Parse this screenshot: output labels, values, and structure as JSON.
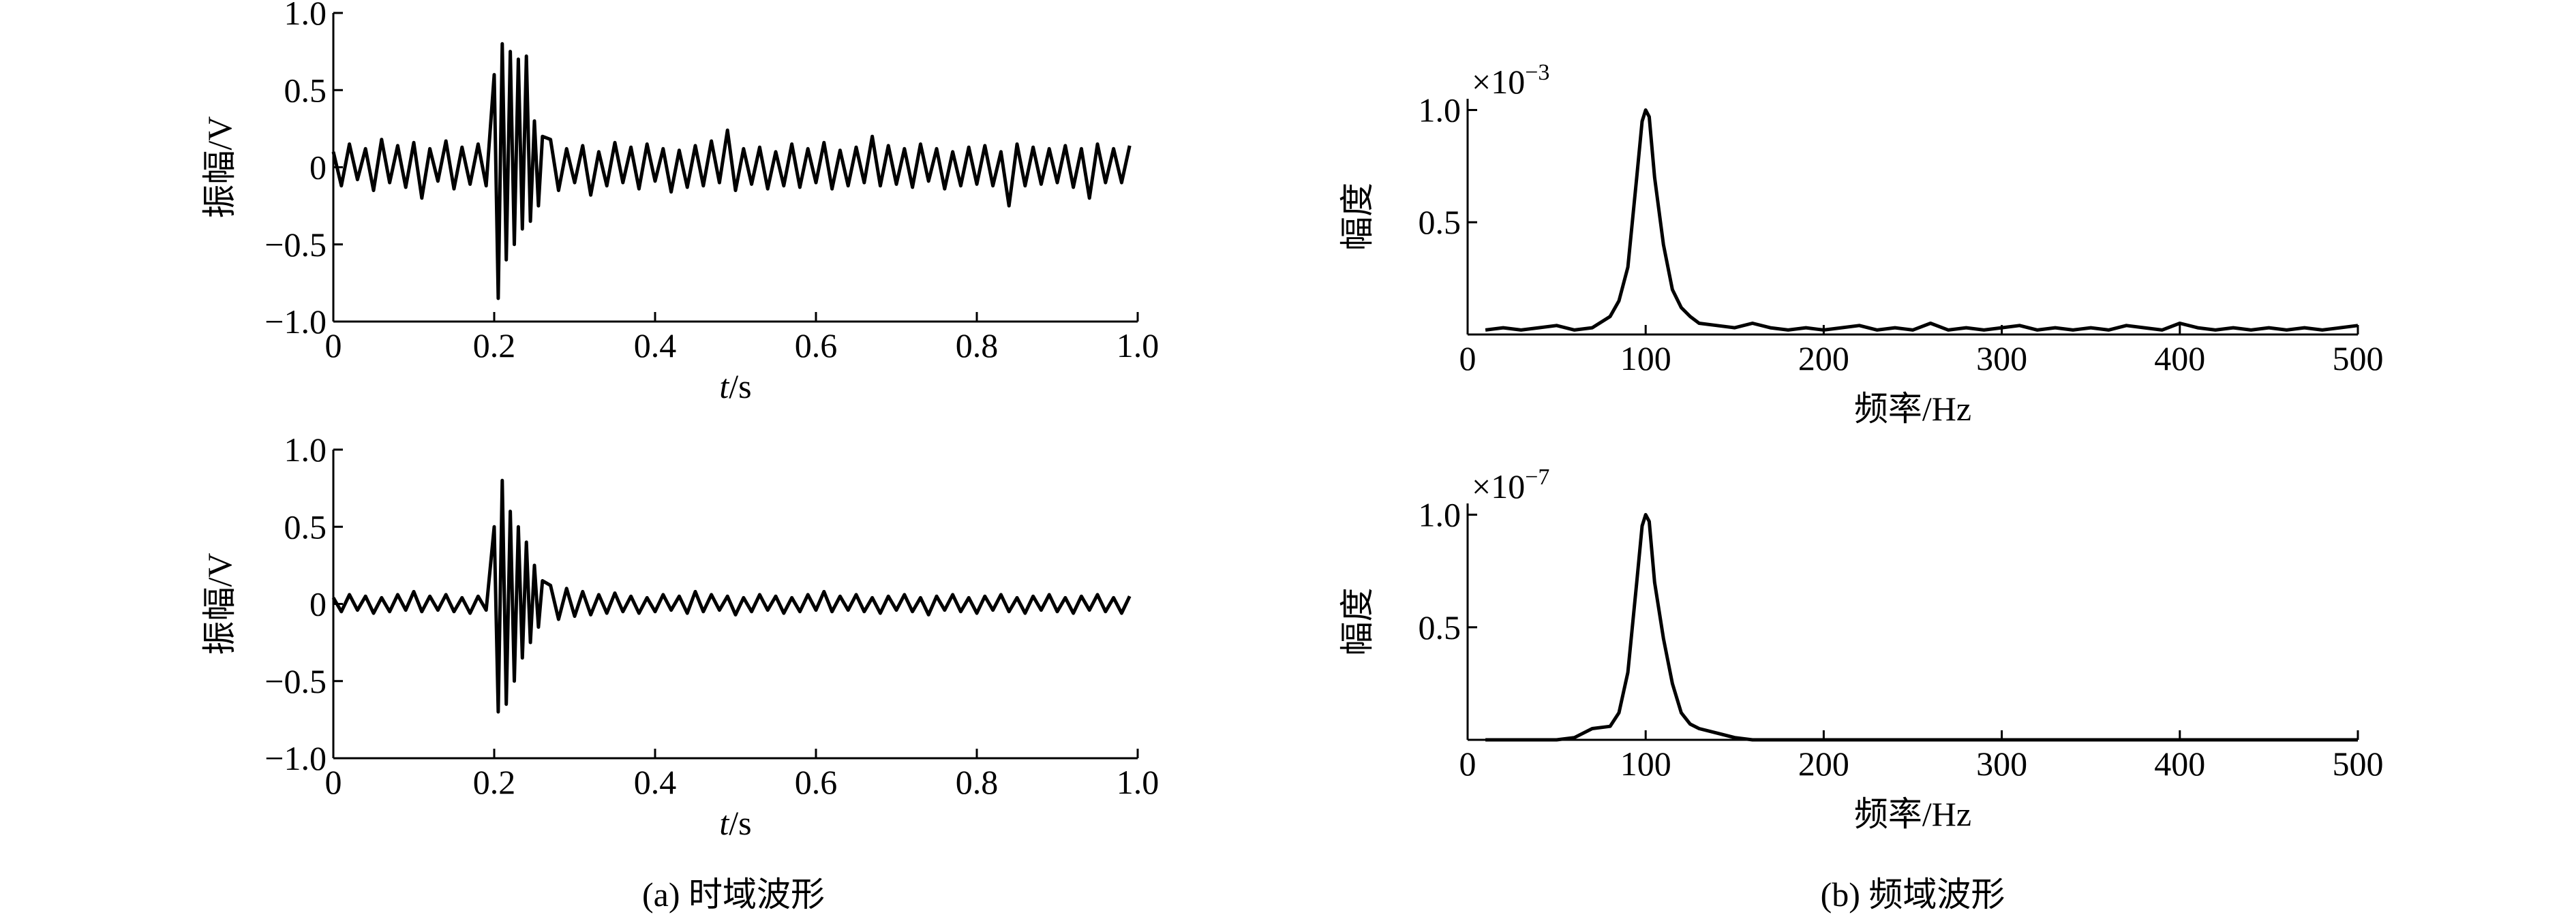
{
  "chart_data": [
    {
      "type": "line",
      "ylabel": "振幅/V",
      "xlabel": {
        "symbol": "t",
        "unit": "/s"
      },
      "xlim": [
        0,
        1
      ],
      "xticks": [
        0,
        0.2,
        0.4,
        0.6,
        0.8,
        {
          "value": 1,
          "label": "1.0"
        }
      ],
      "ylim": [
        -1,
        1
      ],
      "yticks": [
        {
          "value": -1,
          "label": "−1.0"
        },
        {
          "value": -0.5,
          "label": "−0.5"
        },
        0,
        0.5,
        {
          "value": 1,
          "label": "1.0"
        }
      ],
      "color": "#000000",
      "x": [
        0,
        0.01,
        0.02,
        0.03,
        0.04,
        0.05,
        0.06,
        0.07,
        0.08,
        0.09,
        0.1,
        0.11,
        0.12,
        0.13,
        0.14,
        0.15,
        0.16,
        0.17,
        0.18,
        0.19,
        0.2,
        0.205,
        0.21,
        0.215,
        0.22,
        0.225,
        0.23,
        0.235,
        0.24,
        0.245,
        0.25,
        0.255,
        0.26,
        0.27,
        0.28,
        0.29,
        0.3,
        0.31,
        0.32,
        0.33,
        0.34,
        0.35,
        0.36,
        0.37,
        0.38,
        0.39,
        0.4,
        0.41,
        0.42,
        0.43,
        0.44,
        0.45,
        0.46,
        0.47,
        0.48,
        0.49,
        0.5,
        0.51,
        0.52,
        0.53,
        0.54,
        0.55,
        0.56,
        0.57,
        0.58,
        0.59,
        0.6,
        0.61,
        0.62,
        0.63,
        0.64,
        0.65,
        0.66,
        0.67,
        0.68,
        0.69,
        0.7,
        0.71,
        0.72,
        0.73,
        0.74,
        0.75,
        0.76,
        0.77,
        0.78,
        0.79,
        0.8,
        0.81,
        0.82,
        0.83,
        0.84,
        0.85,
        0.86,
        0.87,
        0.88,
        0.89,
        0.9,
        0.91,
        0.92,
        0.93,
        0.94,
        0.95,
        0.96,
        0.97,
        0.98,
        0.99
      ],
      "values": [
        0.1,
        -0.12,
        0.15,
        -0.08,
        0.12,
        -0.15,
        0.18,
        -0.1,
        0.14,
        -0.13,
        0.16,
        -0.2,
        0.12,
        -0.09,
        0.17,
        -0.14,
        0.13,
        -0.11,
        0.15,
        -0.12,
        0.6,
        -0.85,
        0.8,
        -0.6,
        0.75,
        -0.5,
        0.7,
        -0.4,
        0.72,
        -0.35,
        0.3,
        -0.25,
        0.2,
        0.18,
        -0.15,
        0.12,
        -0.1,
        0.14,
        -0.18,
        0.1,
        -0.12,
        0.16,
        -0.1,
        0.13,
        -0.14,
        0.15,
        -0.09,
        0.12,
        -0.16,
        0.11,
        -0.13,
        0.14,
        -0.12,
        0.17,
        -0.1,
        0.24,
        -0.15,
        0.12,
        -0.11,
        0.13,
        -0.14,
        0.1,
        -0.12,
        0.15,
        -0.13,
        0.12,
        -0.1,
        0.16,
        -0.14,
        0.11,
        -0.12,
        0.13,
        -0.1,
        0.2,
        -0.12,
        0.14,
        -0.11,
        0.12,
        -0.13,
        0.15,
        -0.09,
        0.12,
        -0.14,
        0.1,
        -0.12,
        0.13,
        -0.11,
        0.14,
        -0.12,
        0.1,
        -0.25,
        0.15,
        -0.12,
        0.13,
        -0.11,
        0.12,
        -0.1,
        0.14,
        -0.13,
        0.12,
        -0.2,
        0.15,
        -0.1,
        0.12,
        -0.1,
        0.14
      ]
    },
    {
      "type": "line",
      "ylabel": "振幅/V",
      "xlabel": {
        "symbol": "t",
        "unit": "/s"
      },
      "xlim": [
        0,
        1
      ],
      "xticks": [
        0,
        0.2,
        0.4,
        0.6,
        0.8,
        {
          "value": 1,
          "label": "1.0"
        }
      ],
      "ylim": [
        -1,
        1
      ],
      "yticks": [
        {
          "value": -1,
          "label": "−1.0"
        },
        {
          "value": -0.5,
          "label": "−0.5"
        },
        0,
        0.5,
        {
          "value": 1,
          "label": "1.0"
        }
      ],
      "color": "#000000",
      "x": [
        0,
        0.01,
        0.02,
        0.03,
        0.04,
        0.05,
        0.06,
        0.07,
        0.08,
        0.09,
        0.1,
        0.11,
        0.12,
        0.13,
        0.14,
        0.15,
        0.16,
        0.17,
        0.18,
        0.19,
        0.2,
        0.205,
        0.21,
        0.215,
        0.22,
        0.225,
        0.23,
        0.235,
        0.24,
        0.245,
        0.25,
        0.255,
        0.26,
        0.27,
        0.28,
        0.29,
        0.3,
        0.31,
        0.32,
        0.33,
        0.34,
        0.35,
        0.36,
        0.37,
        0.38,
        0.39,
        0.4,
        0.41,
        0.42,
        0.43,
        0.44,
        0.45,
        0.46,
        0.47,
        0.48,
        0.49,
        0.5,
        0.51,
        0.52,
        0.53,
        0.54,
        0.55,
        0.56,
        0.57,
        0.58,
        0.59,
        0.6,
        0.61,
        0.62,
        0.63,
        0.64,
        0.65,
        0.66,
        0.67,
        0.68,
        0.69,
        0.7,
        0.71,
        0.72,
        0.73,
        0.74,
        0.75,
        0.76,
        0.77,
        0.78,
        0.79,
        0.8,
        0.81,
        0.82,
        0.83,
        0.84,
        0.85,
        0.86,
        0.87,
        0.88,
        0.89,
        0.9,
        0.91,
        0.92,
        0.93,
        0.94,
        0.95,
        0.96,
        0.97,
        0.98,
        0.99
      ],
      "values": [
        0.04,
        -0.05,
        0.06,
        -0.04,
        0.05,
        -0.06,
        0.04,
        -0.05,
        0.06,
        -0.04,
        0.08,
        -0.05,
        0.05,
        -0.04,
        0.06,
        -0.05,
        0.04,
        -0.06,
        0.05,
        -0.04,
        0.5,
        -0.7,
        0.8,
        -0.65,
        0.6,
        -0.5,
        0.5,
        -0.35,
        0.4,
        -0.25,
        0.25,
        -0.15,
        0.15,
        0.12,
        -0.1,
        0.1,
        -0.08,
        0.08,
        -0.07,
        0.06,
        -0.06,
        0.07,
        -0.05,
        0.05,
        -0.06,
        0.04,
        -0.05,
        0.06,
        -0.04,
        0.05,
        -0.06,
        0.08,
        -0.05,
        0.06,
        -0.04,
        0.05,
        -0.07,
        0.04,
        -0.05,
        0.06,
        -0.04,
        0.05,
        -0.06,
        0.04,
        -0.05,
        0.06,
        -0.04,
        0.08,
        -0.05,
        0.05,
        -0.04,
        0.06,
        -0.05,
        0.04,
        -0.06,
        0.05,
        -0.04,
        0.06,
        -0.05,
        0.04,
        -0.07,
        0.05,
        -0.04,
        0.06,
        -0.05,
        0.04,
        -0.06,
        0.05,
        -0.04,
        0.06,
        -0.05,
        0.04,
        -0.06,
        0.05,
        -0.04,
        0.06,
        -0.05,
        0.04,
        -0.06,
        0.05,
        -0.04,
        0.06,
        -0.05,
        0.04,
        -0.06,
        0.05
      ]
    },
    {
      "type": "line",
      "ylabel": "幅度",
      "xlabel": "频率/Hz",
      "y_multiplier": {
        "base": "×10",
        "exponent": "−3"
      },
      "xlim": [
        0,
        500
      ],
      "xticks": [
        0,
        100,
        200,
        300,
        400,
        500
      ],
      "ylim": [
        0,
        1.05
      ],
      "yticks": [
        0.5,
        {
          "value": 1,
          "label": "1.0"
        }
      ],
      "color": "#000000",
      "x": [
        10,
        20,
        30,
        40,
        50,
        60,
        70,
        80,
        85,
        90,
        95,
        98,
        100,
        102,
        105,
        110,
        115,
        120,
        125,
        130,
        140,
        150,
        160,
        170,
        180,
        190,
        200,
        210,
        220,
        230,
        240,
        250,
        260,
        270,
        280,
        290,
        300,
        310,
        320,
        330,
        340,
        350,
        360,
        370,
        380,
        390,
        400,
        410,
        420,
        430,
        440,
        450,
        460,
        470,
        480,
        490,
        500
      ],
      "values": [
        0.02,
        0.03,
        0.02,
        0.03,
        0.04,
        0.02,
        0.03,
        0.08,
        0.15,
        0.3,
        0.7,
        0.95,
        1.0,
        0.97,
        0.7,
        0.4,
        0.2,
        0.12,
        0.08,
        0.05,
        0.04,
        0.03,
        0.05,
        0.03,
        0.02,
        0.03,
        0.02,
        0.03,
        0.04,
        0.02,
        0.03,
        0.02,
        0.05,
        0.02,
        0.03,
        0.02,
        0.03,
        0.04,
        0.02,
        0.03,
        0.02,
        0.03,
        0.02,
        0.04,
        0.03,
        0.02,
        0.05,
        0.03,
        0.02,
        0.03,
        0.02,
        0.03,
        0.02,
        0.03,
        0.02,
        0.03,
        0.04
      ]
    },
    {
      "type": "line",
      "ylabel": "幅度",
      "xlabel": "频率/Hz",
      "y_multiplier": {
        "base": "×10",
        "exponent": "−7"
      },
      "xlim": [
        0,
        500
      ],
      "xticks": [
        0,
        100,
        200,
        300,
        400,
        500
      ],
      "ylim": [
        0,
        1.05
      ],
      "yticks": [
        0.5,
        {
          "value": 1,
          "label": "1.0"
        }
      ],
      "color": "#000000",
      "x": [
        10,
        20,
        30,
        40,
        50,
        60,
        70,
        80,
        85,
        90,
        95,
        98,
        100,
        102,
        105,
        110,
        115,
        120,
        125,
        130,
        140,
        150,
        160,
        170,
        180,
        190,
        200,
        210,
        220,
        230,
        240,
        250,
        260,
        270,
        280,
        290,
        300,
        310,
        320,
        330,
        340,
        350,
        360,
        370,
        380,
        390,
        400,
        410,
        420,
        430,
        440,
        450,
        460,
        470,
        480,
        490,
        500
      ],
      "values": [
        0,
        0,
        0,
        0,
        0,
        0.01,
        0.05,
        0.06,
        0.12,
        0.3,
        0.7,
        0.95,
        1.0,
        0.97,
        0.7,
        0.45,
        0.25,
        0.12,
        0.07,
        0.05,
        0.03,
        0.01,
        0,
        0,
        0,
        0,
        0,
        0,
        0,
        0,
        0,
        0,
        0,
        0,
        0,
        0,
        0,
        0,
        0,
        0,
        0,
        0,
        0,
        0,
        0,
        0,
        0,
        0,
        0,
        0,
        0,
        0,
        0,
        0,
        0,
        0,
        0
      ]
    }
  ],
  "captions": [
    "(a) 时域波形",
    "(b) 频域波形"
  ]
}
